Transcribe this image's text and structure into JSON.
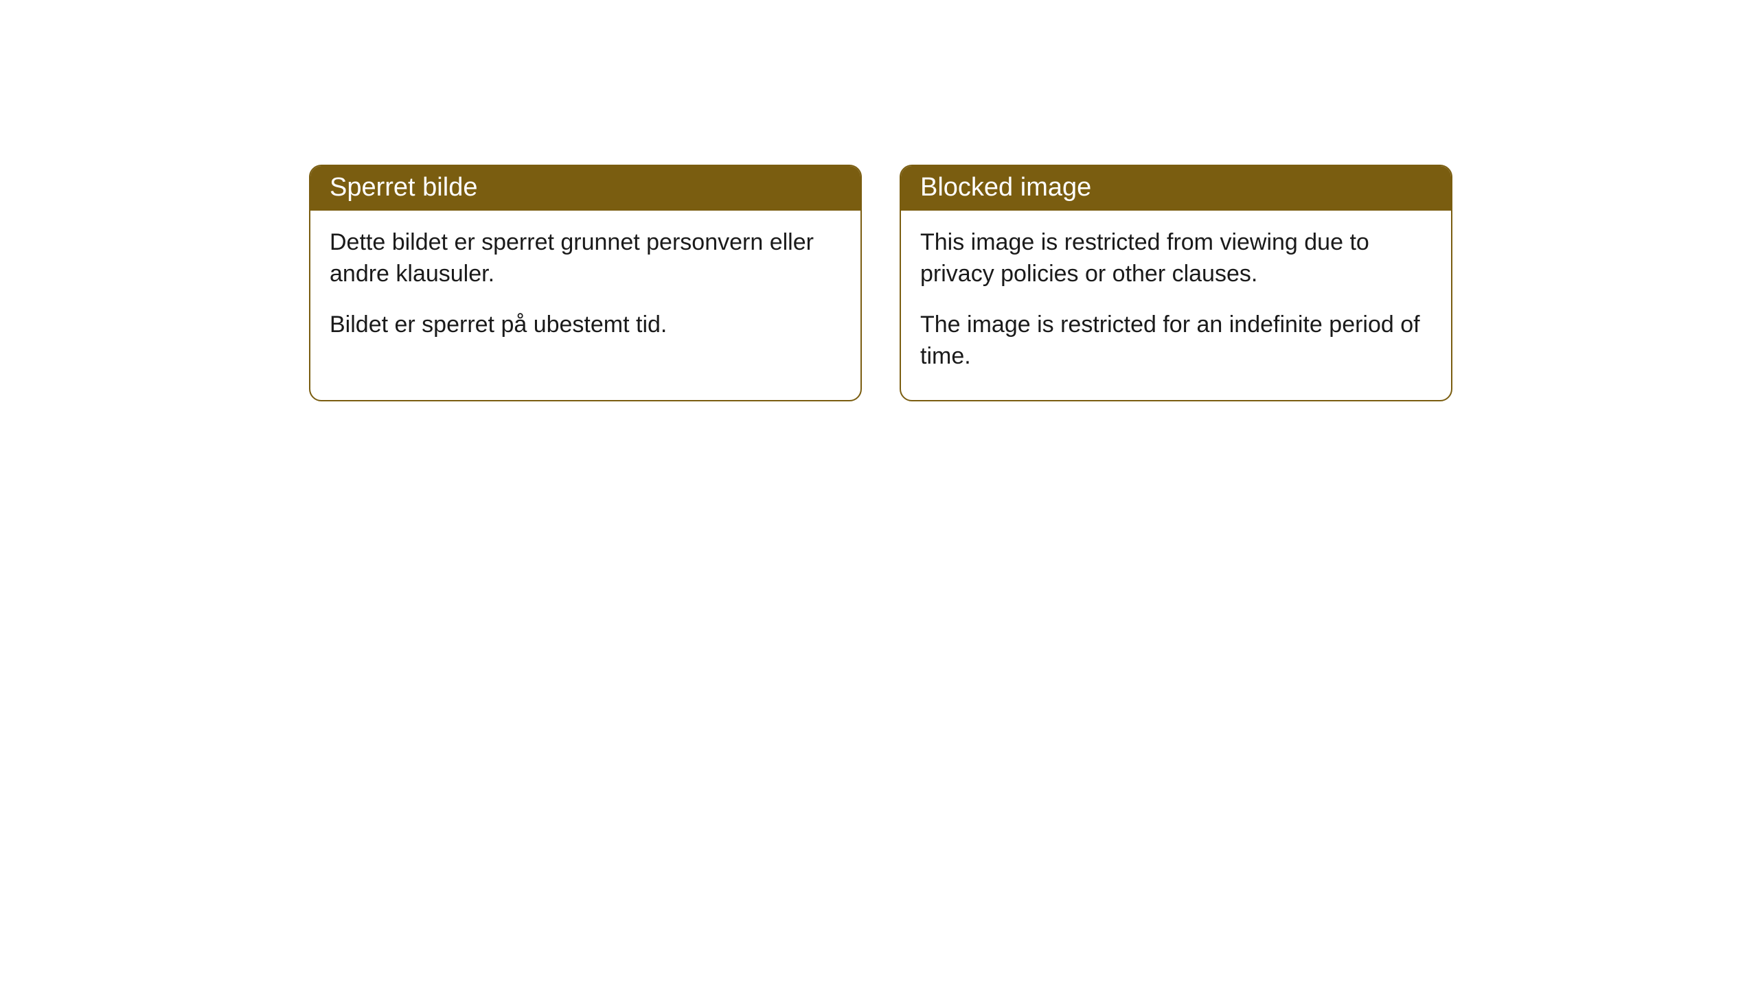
{
  "cards": [
    {
      "title": "Sperret bilde",
      "paragraph1": "Dette bildet er sperret grunnet personvern eller andre klausuler.",
      "paragraph2": "Bildet er sperret på ubestemt tid."
    },
    {
      "title": "Blocked image",
      "paragraph1": "This image is restricted from viewing due to privacy policies or other clauses.",
      "paragraph2": "The image is restricted for an indefinite period of time."
    }
  ],
  "styling": {
    "header_background": "#7a5d10",
    "header_text_color": "#ffffff",
    "card_border_color": "#7a5d10",
    "card_background": "#ffffff",
    "body_text_color": "#1a1a1a",
    "border_radius": 18,
    "title_fontsize": 38,
    "body_fontsize": 34
  }
}
